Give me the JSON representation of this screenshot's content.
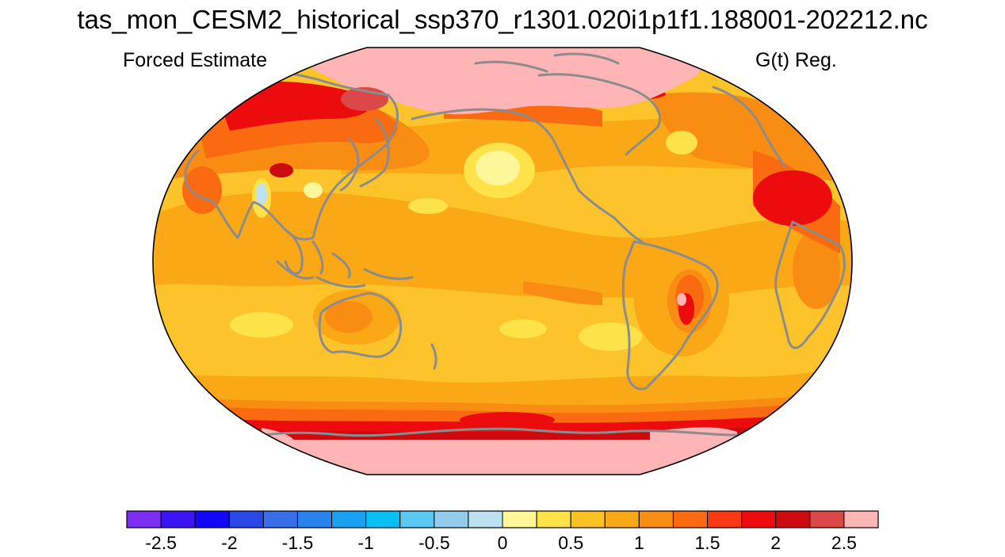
{
  "title": "tas_mon_CESM2_historical_ssp370_r1301.020i1p1f1.188001-202212.nc",
  "left_subtitle": "Forced Estimate",
  "right_subtitle": "G(t) Reg.",
  "map": {
    "projection": "robinson-like",
    "center_longitude": 180,
    "field": "regression of tas on G(t)",
    "palette_background_ocean_level": "#fcc42a",
    "colors": {
      "coastline": "#8c8c8c",
      "outline": "#000000"
    }
  },
  "colorbar": {
    "levels": [
      -2.75,
      -2.5,
      -2.25,
      -2,
      -1.75,
      -1.5,
      -1.25,
      -1,
      -0.75,
      -0.5,
      -0.25,
      0,
      0.25,
      0.5,
      0.75,
      1,
      1.25,
      1.5,
      1.75,
      2,
      2.25,
      2.5,
      2.75
    ],
    "colors": [
      "#7b2ff0",
      "#3b14f2",
      "#1208f6",
      "#2a48e6",
      "#3a6ee8",
      "#2a82ee",
      "#1aa0f2",
      "#08c0f6",
      "#5ac8f0",
      "#96cceb",
      "#bce2f2",
      "#fff69a",
      "#fde24a",
      "#fbc226",
      "#fba816",
      "#f98c12",
      "#fa6a10",
      "#f73a14",
      "#ec0c0e",
      "#cc0a10",
      "#dc4848",
      "#ffb4b6"
    ],
    "tick_labels": [
      "-2.5",
      "-2",
      "-1.5",
      "-1",
      "-0.5",
      "0",
      "0.5",
      "1",
      "1.5",
      "2",
      "2.5"
    ],
    "tick_values": [
      -2.5,
      -2,
      -1.5,
      -1,
      -0.5,
      0,
      0.5,
      1,
      1.5,
      2,
      2.5
    ]
  }
}
